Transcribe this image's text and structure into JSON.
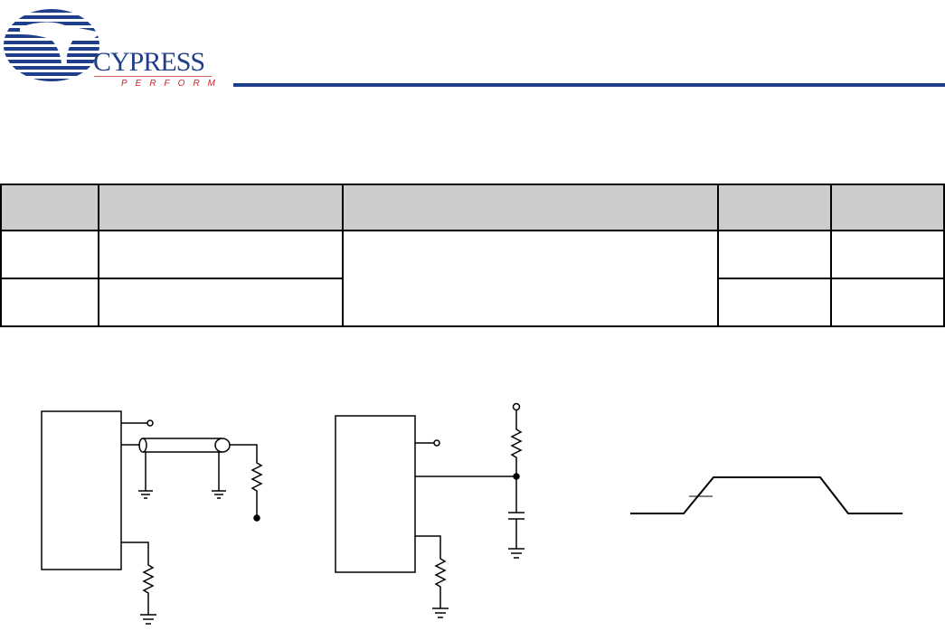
{
  "header": {
    "logo": {
      "brand": "CYPRESS",
      "tagline": "PERFORM",
      "colors": {
        "blue": "#1f3f8a",
        "red": "#c0282d"
      }
    }
  },
  "table": {
    "header_fill": "#cccccc",
    "columns": [
      "",
      "",
      "",
      "",
      ""
    ],
    "rows": [
      [
        "",
        "",
        "",
        "",
        ""
      ],
      [
        "",
        "",
        "",
        ""
      ]
    ]
  },
  "figures": [
    {
      "name": "load-circuit-transmission-line"
    },
    {
      "name": "load-circuit-rc"
    },
    {
      "name": "input-waveform"
    }
  ]
}
